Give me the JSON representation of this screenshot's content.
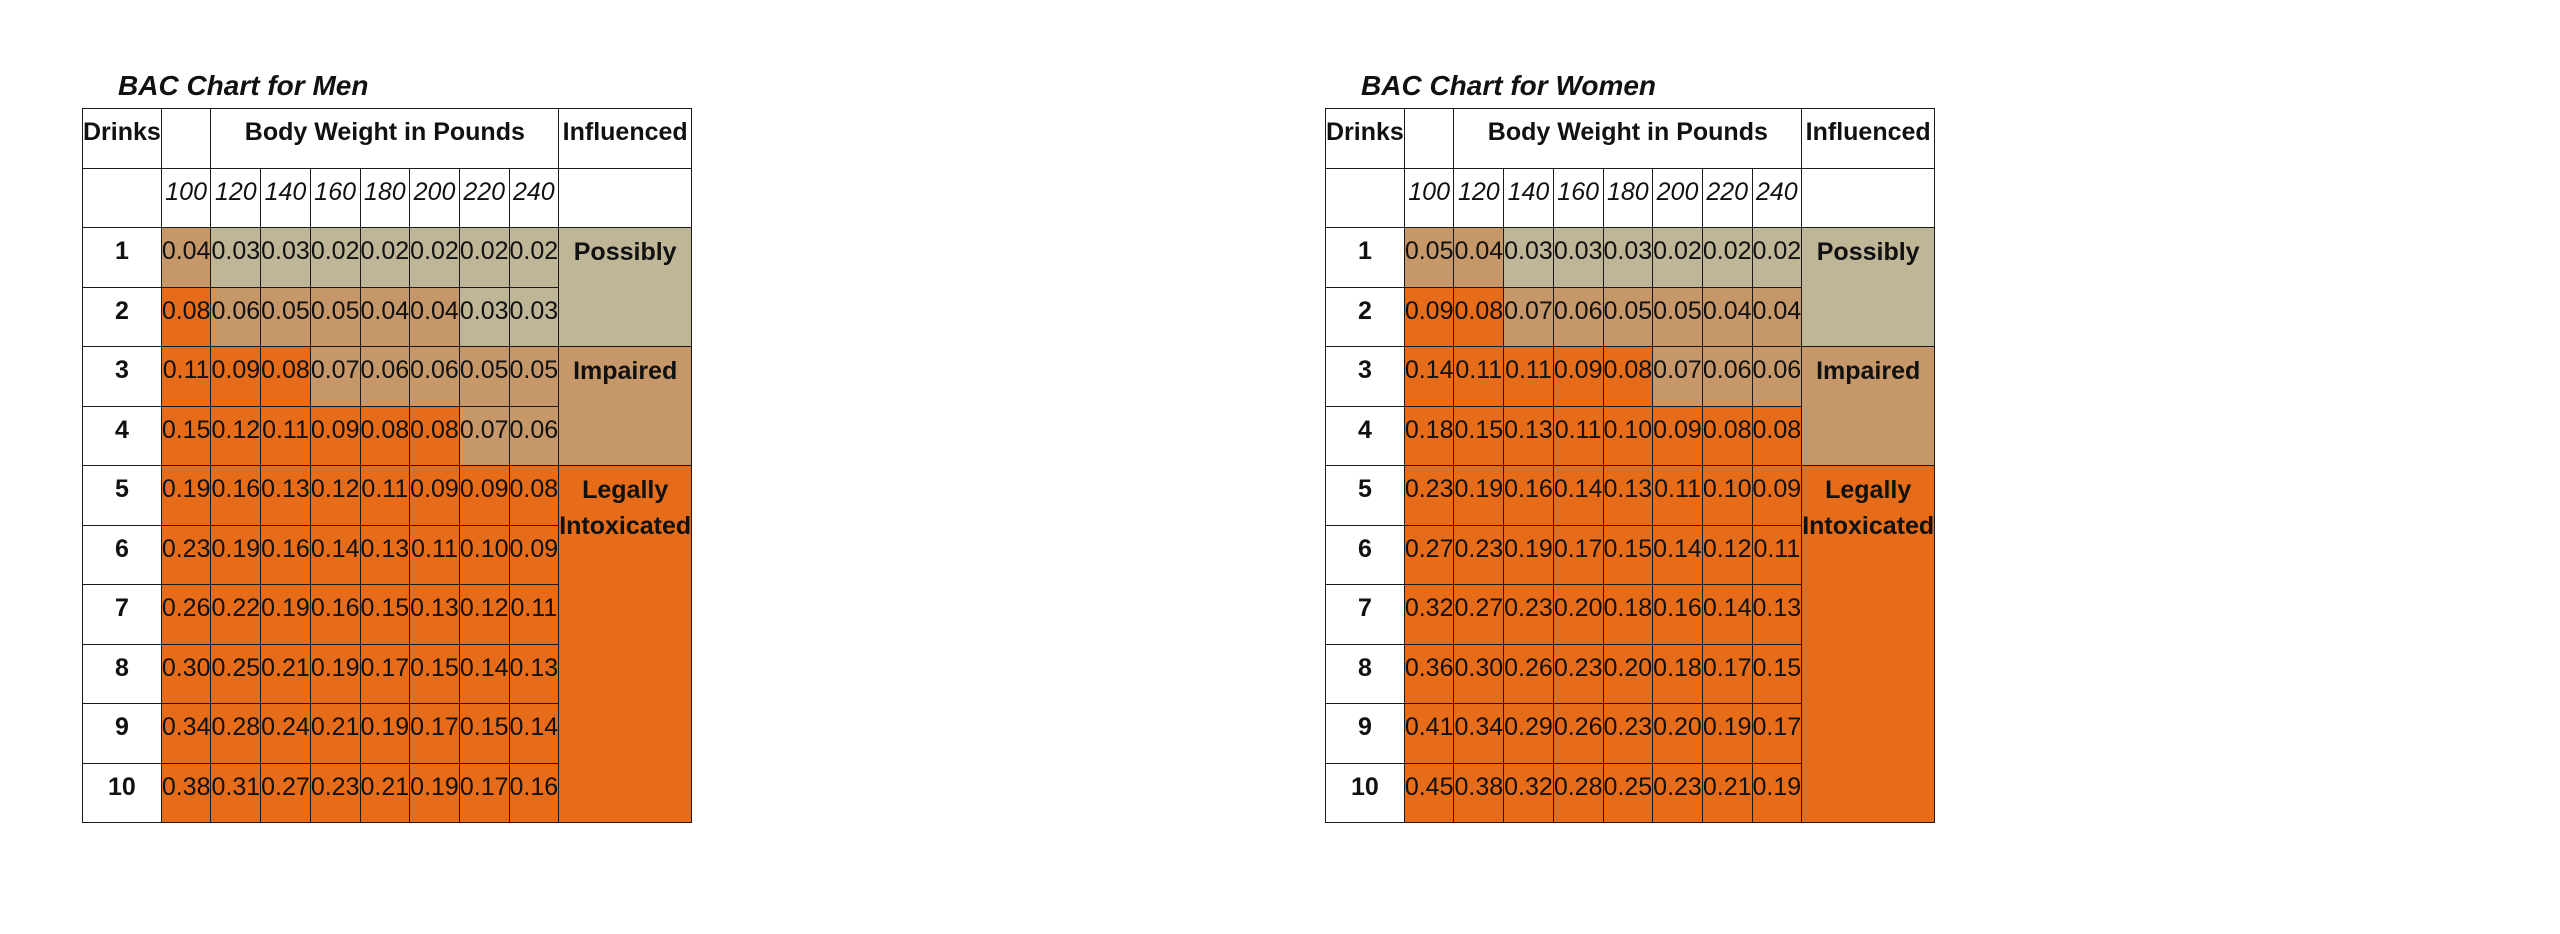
{
  "colors": {
    "tan": "#bfb597",
    "light_brown": "#c69869",
    "orange": "#e66c1a",
    "white": "#ffffff",
    "border": "#1a1a1a"
  },
  "charts": [
    {
      "title": "BAC Chart for Men",
      "headers": {
        "drinks": "Drinks",
        "body_weight": "Body Weight in Pounds",
        "influenced": "Influenced"
      },
      "weights": [
        "100",
        "120",
        "140",
        "160",
        "180",
        "200",
        "220",
        "240"
      ],
      "rows": [
        {
          "drinks": "1",
          "values": [
            "0.04",
            "0.03",
            "0.03",
            "0.02",
            "0.02",
            "0.02",
            "0.02",
            "0.02"
          ],
          "shades": [
            "l",
            "t",
            "t",
            "t",
            "t",
            "t",
            "t",
            "t"
          ]
        },
        {
          "drinks": "2",
          "values": [
            "0.08",
            "0.06",
            "0.05",
            "0.05",
            "0.04",
            "0.04",
            "0.03",
            "0.03"
          ],
          "shades": [
            "o",
            "l",
            "l",
            "l",
            "l",
            "l",
            "t",
            "t"
          ]
        },
        {
          "drinks": "3",
          "values": [
            "0.11",
            "0.09",
            "0.08",
            "0.07",
            "0.06",
            "0.06",
            "0.05",
            "0.05"
          ],
          "shades": [
            "o",
            "o",
            "o",
            "l",
            "l",
            "l",
            "l",
            "l"
          ]
        },
        {
          "drinks": "4",
          "values": [
            "0.15",
            "0.12",
            "0.11",
            "0.09",
            "0.08",
            "0.08",
            "0.07",
            "0.06"
          ],
          "shades": [
            "o",
            "o",
            "o",
            "o",
            "o",
            "o",
            "l",
            "l"
          ]
        },
        {
          "drinks": "5",
          "values": [
            "0.19",
            "0.16",
            "0.13",
            "0.12",
            "0.11",
            "0.09",
            "0.09",
            "0.08"
          ],
          "shades": [
            "o",
            "o",
            "o",
            "o",
            "o",
            "o",
            "o",
            "o"
          ]
        },
        {
          "drinks": "6",
          "values": [
            "0.23",
            "0.19",
            "0.16",
            "0.14",
            "0.13",
            "0.11",
            "0.10",
            "0.09"
          ],
          "shades": [
            "o",
            "o",
            "o",
            "o",
            "o",
            "o",
            "o",
            "o"
          ]
        },
        {
          "drinks": "7",
          "values": [
            "0.26",
            "0.22",
            "0.19",
            "0.16",
            "0.15",
            "0.13",
            "0.12",
            "0.11"
          ],
          "shades": [
            "o",
            "o",
            "o",
            "o",
            "o",
            "o",
            "o",
            "o"
          ]
        },
        {
          "drinks": "8",
          "values": [
            "0.30",
            "0.25",
            "0.21",
            "0.19",
            "0.17",
            "0.15",
            "0.14",
            "0.13"
          ],
          "shades": [
            "o",
            "o",
            "o",
            "o",
            "o",
            "o",
            "o",
            "o"
          ]
        },
        {
          "drinks": "9",
          "values": [
            "0.34",
            "0.28",
            "0.24",
            "0.21",
            "0.19",
            "0.17",
            "0.15",
            "0.14"
          ],
          "shades": [
            "o",
            "o",
            "o",
            "o",
            "o",
            "o",
            "o",
            "o"
          ]
        },
        {
          "drinks": "10",
          "values": [
            "0.38",
            "0.31",
            "0.27",
            "0.23",
            "0.21",
            "0.19",
            "0.17",
            "0.16"
          ],
          "shades": [
            "o",
            "o",
            "o",
            "o",
            "o",
            "o",
            "o",
            "o"
          ]
        }
      ],
      "zones": [
        {
          "label": "Possibly",
          "span": 2,
          "shade": "t"
        },
        {
          "label": "Impaired",
          "span": 2,
          "shade": "l"
        },
        {
          "label": "Legally Intoxicated",
          "span": 6,
          "shade": "o"
        }
      ]
    },
    {
      "title": "BAC Chart for Women",
      "headers": {
        "drinks": "Drinks",
        "body_weight": "Body Weight in Pounds",
        "influenced": "Influenced"
      },
      "weights": [
        "100",
        "120",
        "140",
        "160",
        "180",
        "200",
        "220",
        "240"
      ],
      "rows": [
        {
          "drinks": "1",
          "values": [
            "0.05",
            "0.04",
            "0.03",
            "0.03",
            "0.03",
            "0.02",
            "0.02",
            "0.02"
          ],
          "shades": [
            "l",
            "l",
            "t",
            "t",
            "t",
            "t",
            "t",
            "t"
          ]
        },
        {
          "drinks": "2",
          "values": [
            "0.09",
            "0.08",
            "0.07",
            "0.06",
            "0.05",
            "0.05",
            "0.04",
            "0.04"
          ],
          "shades": [
            "o",
            "o",
            "l",
            "l",
            "l",
            "l",
            "l",
            "l"
          ]
        },
        {
          "drinks": "3",
          "values": [
            "0.14",
            "0.11",
            "0.11",
            "0.09",
            "0.08",
            "0.07",
            "0.06",
            "0.06"
          ],
          "shades": [
            "o",
            "o",
            "o",
            "o",
            "o",
            "l",
            "l",
            "l"
          ]
        },
        {
          "drinks": "4",
          "values": [
            "0.18",
            "0.15",
            "0.13",
            "0.11",
            "0.10",
            "0.09",
            "0.08",
            "0.08"
          ],
          "shades": [
            "o",
            "o",
            "o",
            "o",
            "o",
            "o",
            "o",
            "o"
          ]
        },
        {
          "drinks": "5",
          "values": [
            "0.23",
            "0.19",
            "0.16",
            "0.14",
            "0.13",
            "0.11",
            "0.10",
            "0.09"
          ],
          "shades": [
            "o",
            "o",
            "o",
            "o",
            "o",
            "o",
            "o",
            "o"
          ]
        },
        {
          "drinks": "6",
          "values": [
            "0.27",
            "0.23",
            "0.19",
            "0.17",
            "0.15",
            "0.14",
            "0.12",
            "0.11"
          ],
          "shades": [
            "o",
            "o",
            "o",
            "o",
            "o",
            "o",
            "o",
            "o"
          ]
        },
        {
          "drinks": "7",
          "values": [
            "0.32",
            "0.27",
            "0.23",
            "0.20",
            "0.18",
            "0.16",
            "0.14",
            "0.13"
          ],
          "shades": [
            "o",
            "o",
            "o",
            "o",
            "o",
            "o",
            "o",
            "o"
          ]
        },
        {
          "drinks": "8",
          "values": [
            "0.36",
            "0.30",
            "0.26",
            "0.23",
            "0.20",
            "0.18",
            "0.17",
            "0.15"
          ],
          "shades": [
            "o",
            "o",
            "o",
            "o",
            "o",
            "o",
            "o",
            "o"
          ]
        },
        {
          "drinks": "9",
          "values": [
            "0.41",
            "0.34",
            "0.29",
            "0.26",
            "0.23",
            "0.20",
            "0.19",
            "0.17"
          ],
          "shades": [
            "o",
            "o",
            "o",
            "o",
            "o",
            "o",
            "o",
            "o"
          ]
        },
        {
          "drinks": "10",
          "values": [
            "0.45",
            "0.38",
            "0.32",
            "0.28",
            "0.25",
            "0.23",
            "0.21",
            "0.19"
          ],
          "shades": [
            "o",
            "o",
            "o",
            "o",
            "o",
            "o",
            "o",
            "o"
          ]
        }
      ],
      "zones": [
        {
          "label": "Possibly",
          "span": 2,
          "shade": "t"
        },
        {
          "label": "Impaired",
          "span": 2,
          "shade": "l"
        },
        {
          "label": "Legally Intoxicated",
          "span": 6,
          "shade": "o"
        }
      ]
    }
  ]
}
